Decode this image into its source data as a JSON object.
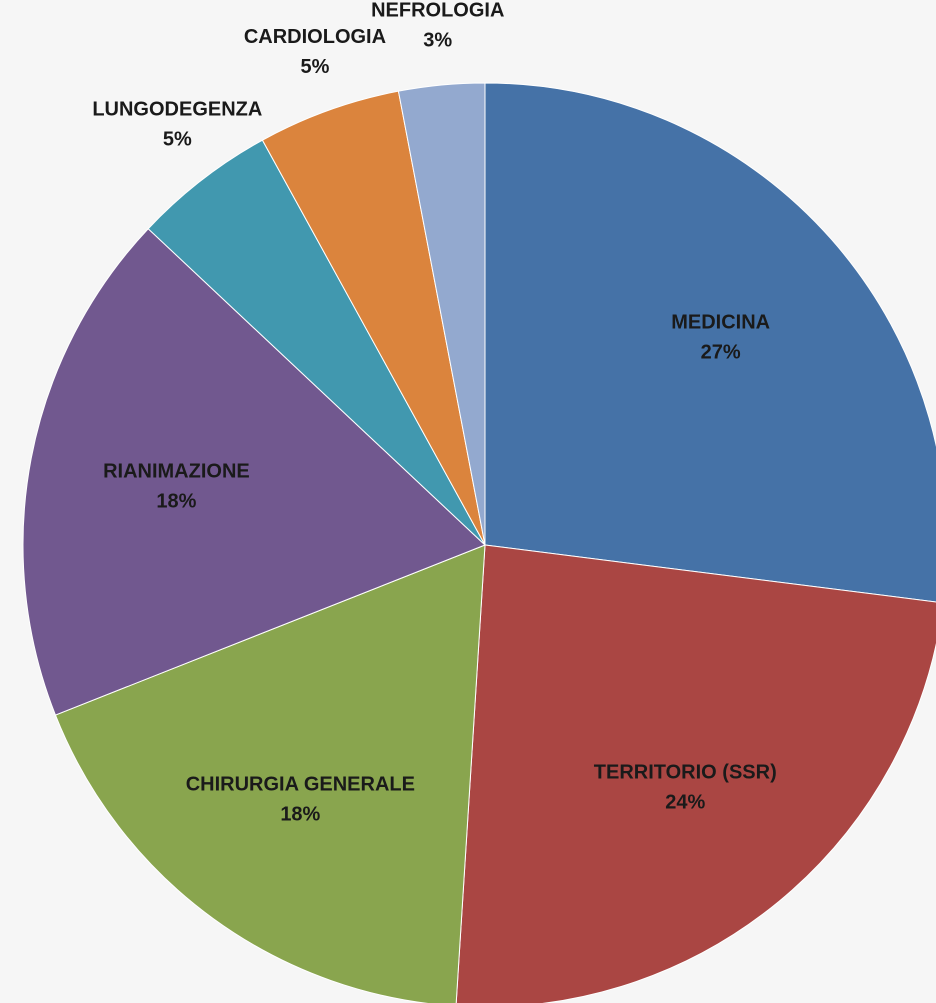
{
  "chart_data": {
    "type": "pie",
    "categories": [
      "MEDICINA",
      "TERRITORIO (SSR)",
      "CHIRURGIA GENERALE",
      "RIANIMAZIONE",
      "LUNGODEGENZA",
      "CARDIOLOGIA",
      "NEFROLOGIA"
    ],
    "values": [
      27,
      24,
      18,
      18,
      5,
      5,
      3
    ],
    "value_labels": [
      "27%",
      "24%",
      "18%",
      "18%",
      "5%",
      "5%",
      "3%"
    ],
    "colors": [
      "#4572a7",
      "#aa4643",
      "#89a54e",
      "#71588f",
      "#4198af",
      "#db843d",
      "#93a9cf"
    ]
  }
}
